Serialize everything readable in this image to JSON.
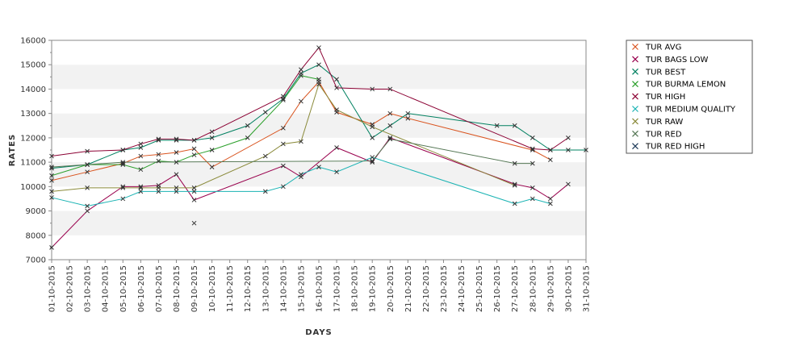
{
  "chart_data": {
    "type": "line",
    "xlabel": "DAYS",
    "ylabel": "RATES",
    "ylim": [
      7000,
      16000
    ],
    "yticks": [
      7000,
      8000,
      9000,
      10000,
      11000,
      12000,
      13000,
      14000,
      15000,
      16000
    ],
    "grid": "alternating horizontal bands",
    "legend_position": "right",
    "categories": [
      "01-10-2015",
      "02-10-2015",
      "03-10-2015",
      "04-10-2015",
      "05-10-2015",
      "06-10-2015",
      "07-10-2015",
      "08-10-2015",
      "09-10-2015",
      "10-10-2015",
      "11-10-2015",
      "12-10-2015",
      "13-10-2015",
      "14-10-2015",
      "15-10-2015",
      "16-10-2015",
      "17-10-2015",
      "18-10-2015",
      "19-10-2015",
      "20-10-2015",
      "21-10-2015",
      "22-10-2015",
      "23-10-2015",
      "24-10-2015",
      "25-10-2015",
      "26-10-2015",
      "27-10-2015",
      "28-10-2015",
      "29-10-2015",
      "30-10-2015",
      "31-10-2015"
    ],
    "series": [
      {
        "name": "TUR AVG",
        "color": "#d9531e",
        "values": [
          10250,
          null,
          10600,
          null,
          10950,
          11250,
          11320,
          11400,
          11550,
          10800,
          null,
          null,
          null,
          12400,
          13500,
          14300,
          13050,
          null,
          12550,
          13000,
          12800,
          null,
          null,
          null,
          null,
          null,
          null,
          11500,
          11100,
          null,
          null
        ]
      },
      {
        "name": "TUR BAGS LOW",
        "color": "#99004d",
        "values": [
          7500,
          null,
          9000,
          null,
          10000,
          10000,
          10050,
          10500,
          9450,
          null,
          null,
          null,
          null,
          10850,
          10400,
          null,
          11600,
          null,
          11000,
          12000,
          null,
          null,
          null,
          null,
          null,
          null,
          10100,
          9950,
          9500,
          10100,
          null
        ]
      },
      {
        "name": "TUR BEST",
        "color": "#008060",
        "values": [
          10750,
          null,
          10900,
          null,
          11500,
          11600,
          11900,
          11900,
          11900,
          12000,
          null,
          12500,
          13050,
          13600,
          14650,
          15000,
          14400,
          null,
          12000,
          12500,
          13000,
          null,
          null,
          null,
          null,
          12500,
          12500,
          12000,
          11500,
          11500,
          11500
        ]
      },
      {
        "name": "TUR BURMA LEMON",
        "color": "#2ca02c",
        "values": [
          10450,
          null,
          10900,
          null,
          10900,
          10700,
          11050,
          11000,
          11300,
          11500,
          null,
          12000,
          null,
          13550,
          14550,
          14400,
          null,
          null,
          null,
          null,
          null,
          null,
          null,
          null,
          null,
          null,
          null,
          null,
          null,
          null,
          null
        ]
      },
      {
        "name": "TUR HIGH",
        "color": "#8b0033",
        "values": [
          11250,
          null,
          11450,
          null,
          11500,
          11750,
          11950,
          11950,
          11900,
          12250,
          null,
          null,
          null,
          13700,
          14800,
          15700,
          14050,
          null,
          14000,
          14000,
          null,
          null,
          null,
          null,
          null,
          null,
          null,
          11550,
          11500,
          12000,
          null
        ]
      },
      {
        "name": "TUR MEDIUM QUALITY",
        "color": "#1ab3b3",
        "values": [
          9550,
          null,
          9200,
          null,
          9500,
          9800,
          9800,
          9800,
          9800,
          null,
          null,
          null,
          9800,
          10000,
          10500,
          10800,
          10600,
          null,
          11200,
          null,
          null,
          null,
          null,
          null,
          null,
          null,
          9300,
          9500,
          9300,
          null,
          null
        ]
      },
      {
        "name": "TUR RAW",
        "color": "#8a8a3a",
        "values": [
          9800,
          null,
          9950,
          null,
          9950,
          9950,
          9950,
          9950,
          9950,
          null,
          null,
          null,
          11250,
          11750,
          11850,
          14200,
          13150,
          null,
          12450,
          null,
          null,
          null,
          null,
          null,
          null,
          null,
          10050,
          null,
          null,
          null,
          null
        ]
      },
      {
        "name": "TUR RED",
        "color": "#557755",
        "values": [
          10800,
          null,
          10900,
          null,
          11000,
          null,
          null,
          null,
          null,
          null,
          null,
          null,
          null,
          null,
          null,
          null,
          null,
          null,
          11050,
          11950,
          null,
          null,
          null,
          null,
          null,
          null,
          10950,
          10950,
          null,
          null,
          null
        ]
      },
      {
        "name": "TUR RED HIGH",
        "color": "#1f3b5a",
        "values": [
          null,
          null,
          null,
          null,
          null,
          null,
          null,
          null,
          8500,
          null,
          null,
          null,
          null,
          null,
          null,
          null,
          null,
          null,
          null,
          null,
          null,
          null,
          null,
          null,
          null,
          null,
          null,
          null,
          null,
          null,
          null
        ]
      }
    ]
  }
}
